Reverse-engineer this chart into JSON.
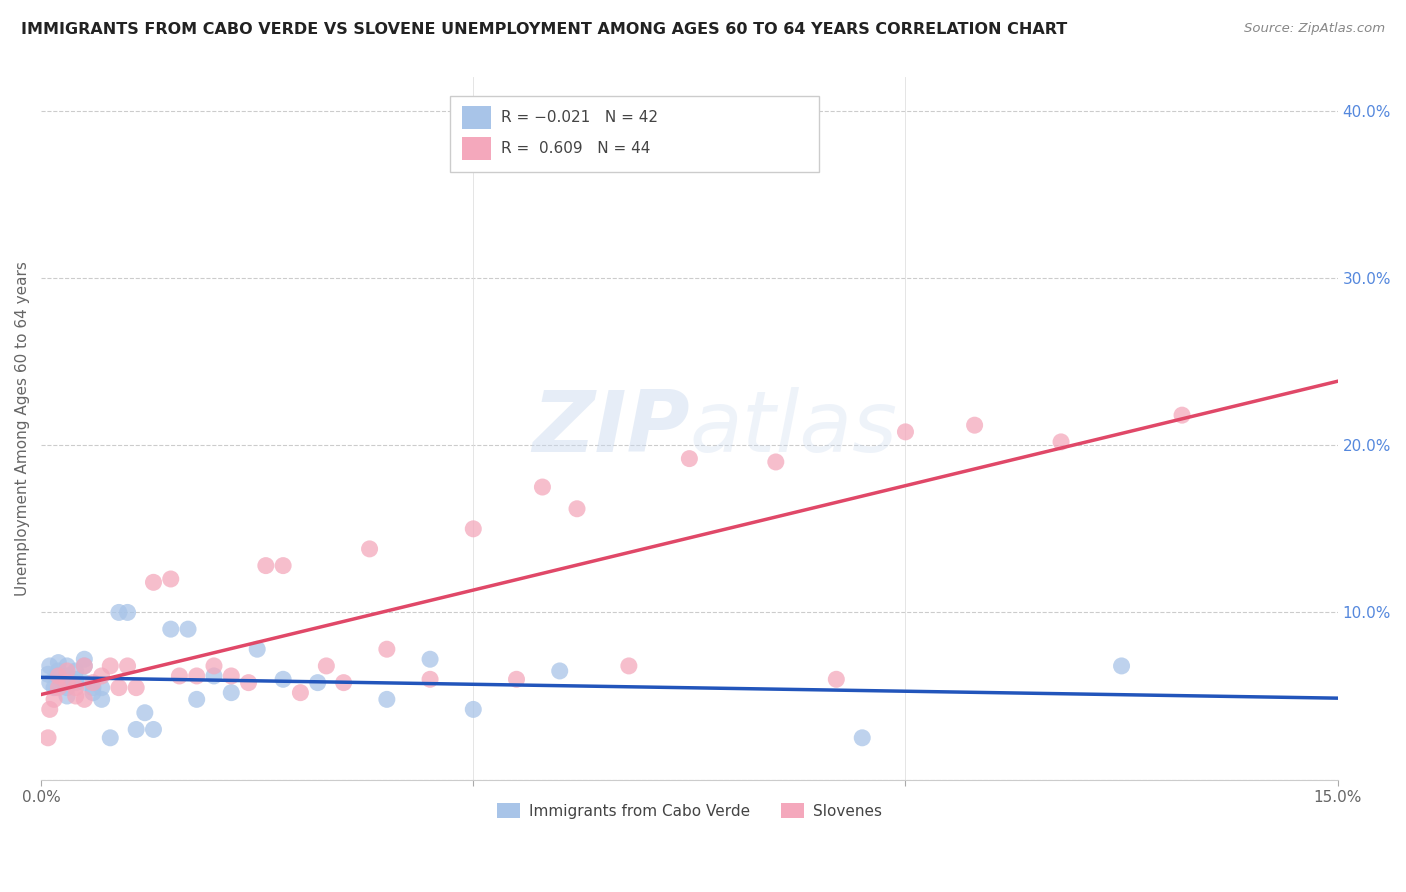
{
  "title": "IMMIGRANTS FROM CABO VERDE VS SLOVENE UNEMPLOYMENT AMONG AGES 60 TO 64 YEARS CORRELATION CHART",
  "source": "Source: ZipAtlas.com",
  "ylabel": "Unemployment Among Ages 60 to 64 years",
  "xlim": [
    0.0,
    0.15
  ],
  "ylim": [
    0.0,
    0.42
  ],
  "yticks_right": [
    0.0,
    0.1,
    0.2,
    0.3,
    0.4
  ],
  "ytick_labels_right": [
    "",
    "10.0%",
    "20.0%",
    "30.0%",
    "40.0%"
  ],
  "r_cabo": -0.021,
  "n_cabo": 42,
  "r_slovene": 0.609,
  "n_slovene": 44,
  "cabo_color": "#a8c4e8",
  "slovene_color": "#f4a8bc",
  "cabo_line_color": "#2255bb",
  "slovene_line_color": "#e04868",
  "cabo_verde_x": [
    0.0008,
    0.001,
    0.001,
    0.0015,
    0.002,
    0.002,
    0.002,
    0.0025,
    0.003,
    0.003,
    0.003,
    0.003,
    0.004,
    0.004,
    0.004,
    0.005,
    0.005,
    0.005,
    0.006,
    0.006,
    0.007,
    0.007,
    0.008,
    0.009,
    0.01,
    0.011,
    0.012,
    0.013,
    0.015,
    0.017,
    0.018,
    0.02,
    0.022,
    0.025,
    0.028,
    0.032,
    0.04,
    0.045,
    0.05,
    0.06,
    0.095,
    0.125
  ],
  "cabo_verde_y": [
    0.063,
    0.058,
    0.068,
    0.055,
    0.062,
    0.07,
    0.065,
    0.058,
    0.05,
    0.062,
    0.068,
    0.055,
    0.058,
    0.065,
    0.06,
    0.072,
    0.068,
    0.058,
    0.052,
    0.055,
    0.048,
    0.055,
    0.025,
    0.1,
    0.1,
    0.03,
    0.04,
    0.03,
    0.09,
    0.09,
    0.048,
    0.062,
    0.052,
    0.078,
    0.06,
    0.058,
    0.048,
    0.072,
    0.042,
    0.065,
    0.025,
    0.068
  ],
  "slovene_x": [
    0.0008,
    0.001,
    0.0015,
    0.002,
    0.002,
    0.003,
    0.003,
    0.004,
    0.004,
    0.005,
    0.005,
    0.006,
    0.007,
    0.008,
    0.009,
    0.01,
    0.011,
    0.013,
    0.015,
    0.016,
    0.018,
    0.02,
    0.022,
    0.024,
    0.026,
    0.028,
    0.03,
    0.033,
    0.035,
    0.038,
    0.04,
    0.045,
    0.05,
    0.055,
    0.058,
    0.062,
    0.068,
    0.075,
    0.085,
    0.092,
    0.1,
    0.108,
    0.118,
    0.132
  ],
  "slovene_y": [
    0.025,
    0.042,
    0.048,
    0.055,
    0.062,
    0.058,
    0.065,
    0.05,
    0.055,
    0.068,
    0.048,
    0.058,
    0.062,
    0.068,
    0.055,
    0.068,
    0.055,
    0.118,
    0.12,
    0.062,
    0.062,
    0.068,
    0.062,
    0.058,
    0.128,
    0.128,
    0.052,
    0.068,
    0.058,
    0.138,
    0.078,
    0.06,
    0.15,
    0.06,
    0.175,
    0.162,
    0.068,
    0.192,
    0.19,
    0.06,
    0.208,
    0.212,
    0.202,
    0.218
  ]
}
